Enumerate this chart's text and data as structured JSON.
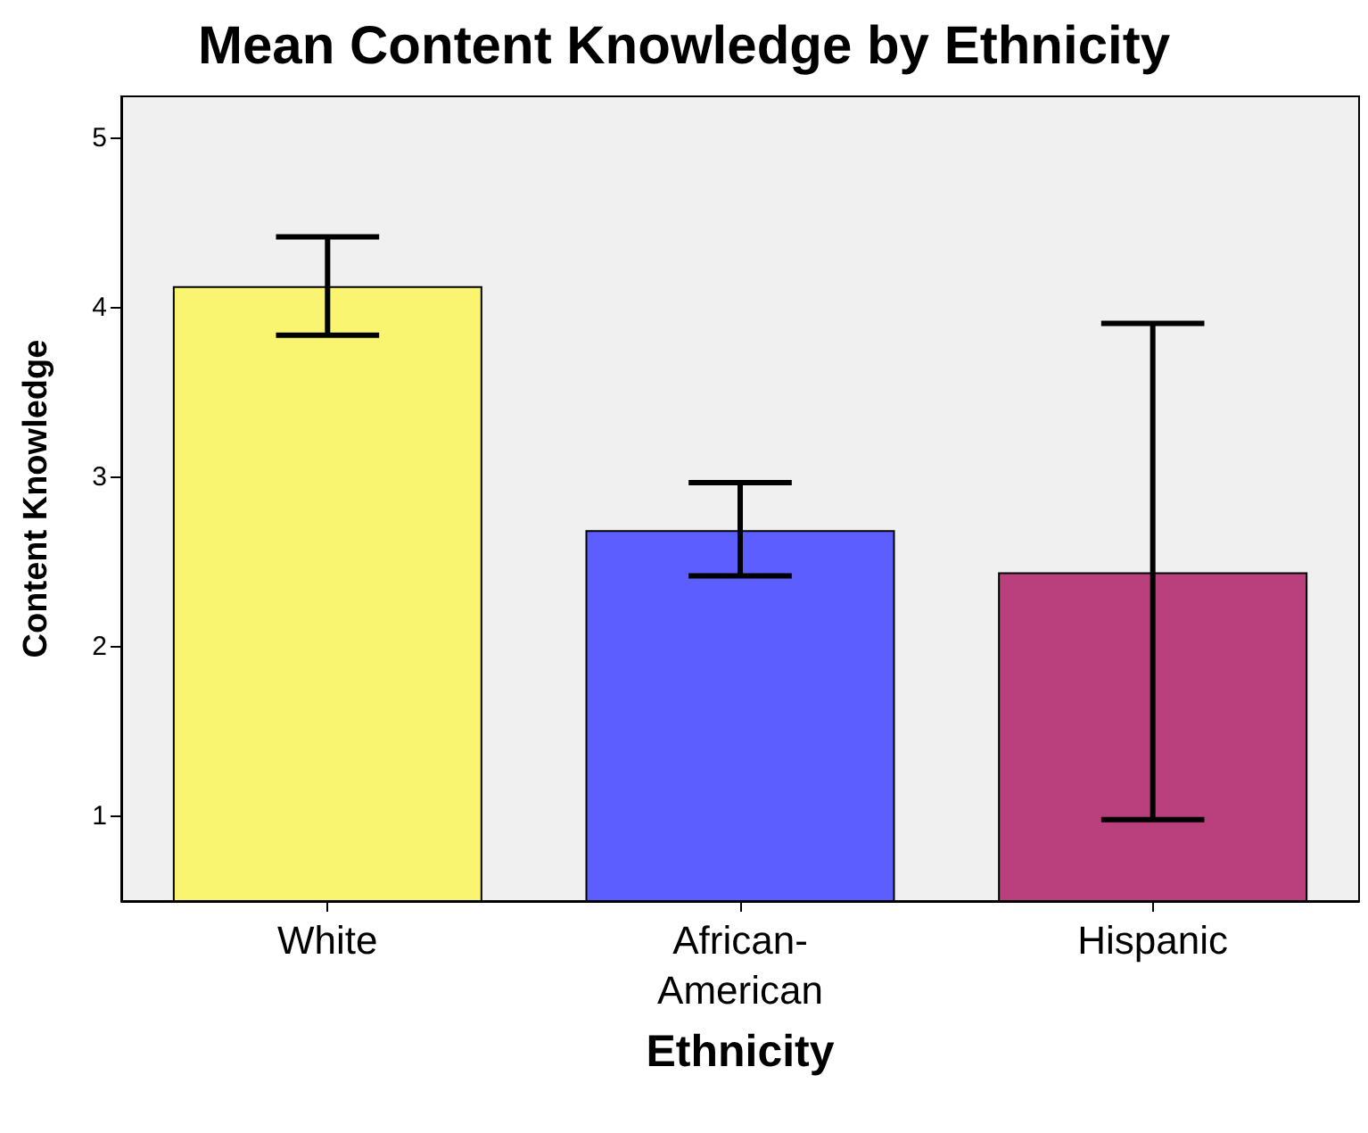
{
  "chart_data": {
    "type": "bar",
    "title": "Mean Content Knowledge by Ethnicity",
    "xlabel": "Ethnicity",
    "ylabel": "Content Knowledge",
    "categories": [
      "White",
      "African-American",
      "Hispanic"
    ],
    "values": [
      4.13,
      2.69,
      2.44
    ],
    "colors": [
      "#f9f571",
      "#5c5eff",
      "#b93f7d"
    ],
    "errors": [
      [
        3.84,
        4.42
      ],
      [
        2.42,
        2.97
      ],
      [
        0.98,
        3.91
      ]
    ],
    "ylim": [
      0.5,
      5.25
    ],
    "yticks": [
      1,
      2,
      3,
      4,
      5
    ],
    "grid": false
  }
}
